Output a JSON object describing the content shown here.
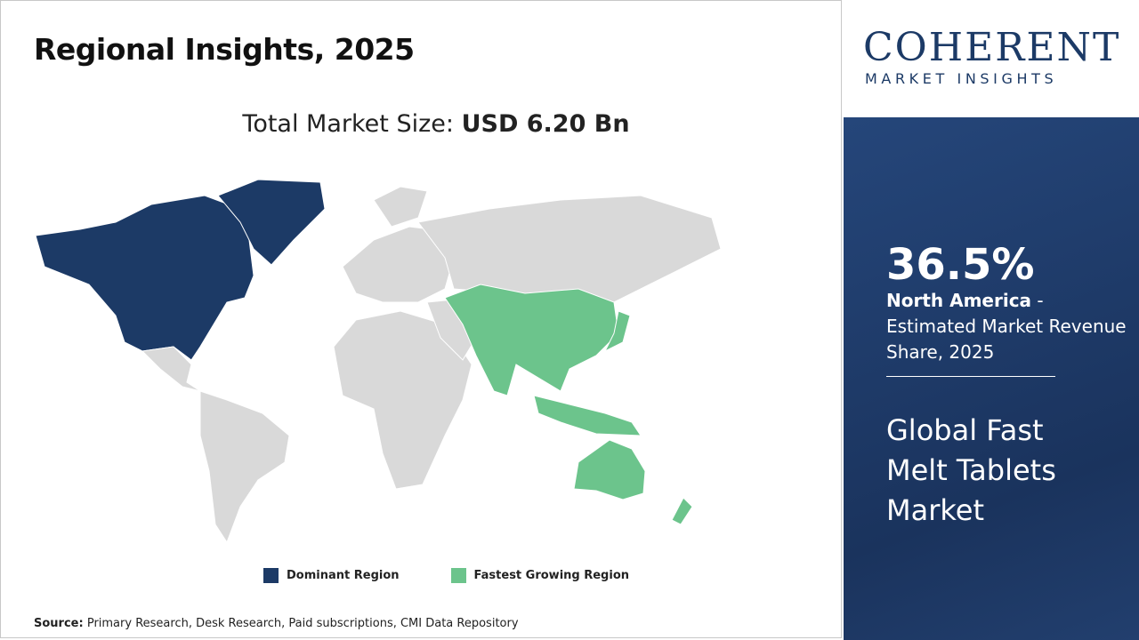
{
  "header": {
    "title": "Regional Insights, 2025"
  },
  "market_size": {
    "label": "Total Market Size:",
    "value": "USD 6.20 Bn"
  },
  "legend": [
    {
      "label": "Dominant Region",
      "color": "#1c3a66"
    },
    {
      "label": "Fastest Growing Region",
      "color": "#6cc48c"
    }
  ],
  "source": {
    "label": "Source:",
    "text": "Primary Research, Desk Research, Paid subscriptions, CMI Data Repository"
  },
  "logo": {
    "name": "COHERENT",
    "tagline": "MARKET INSIGHTS"
  },
  "highlight": {
    "value": "36.5%",
    "region": "North America",
    "description": "- Estimated Market Revenue Share, 2025"
  },
  "market_name": "Global Fast Melt Tablets Market"
}
